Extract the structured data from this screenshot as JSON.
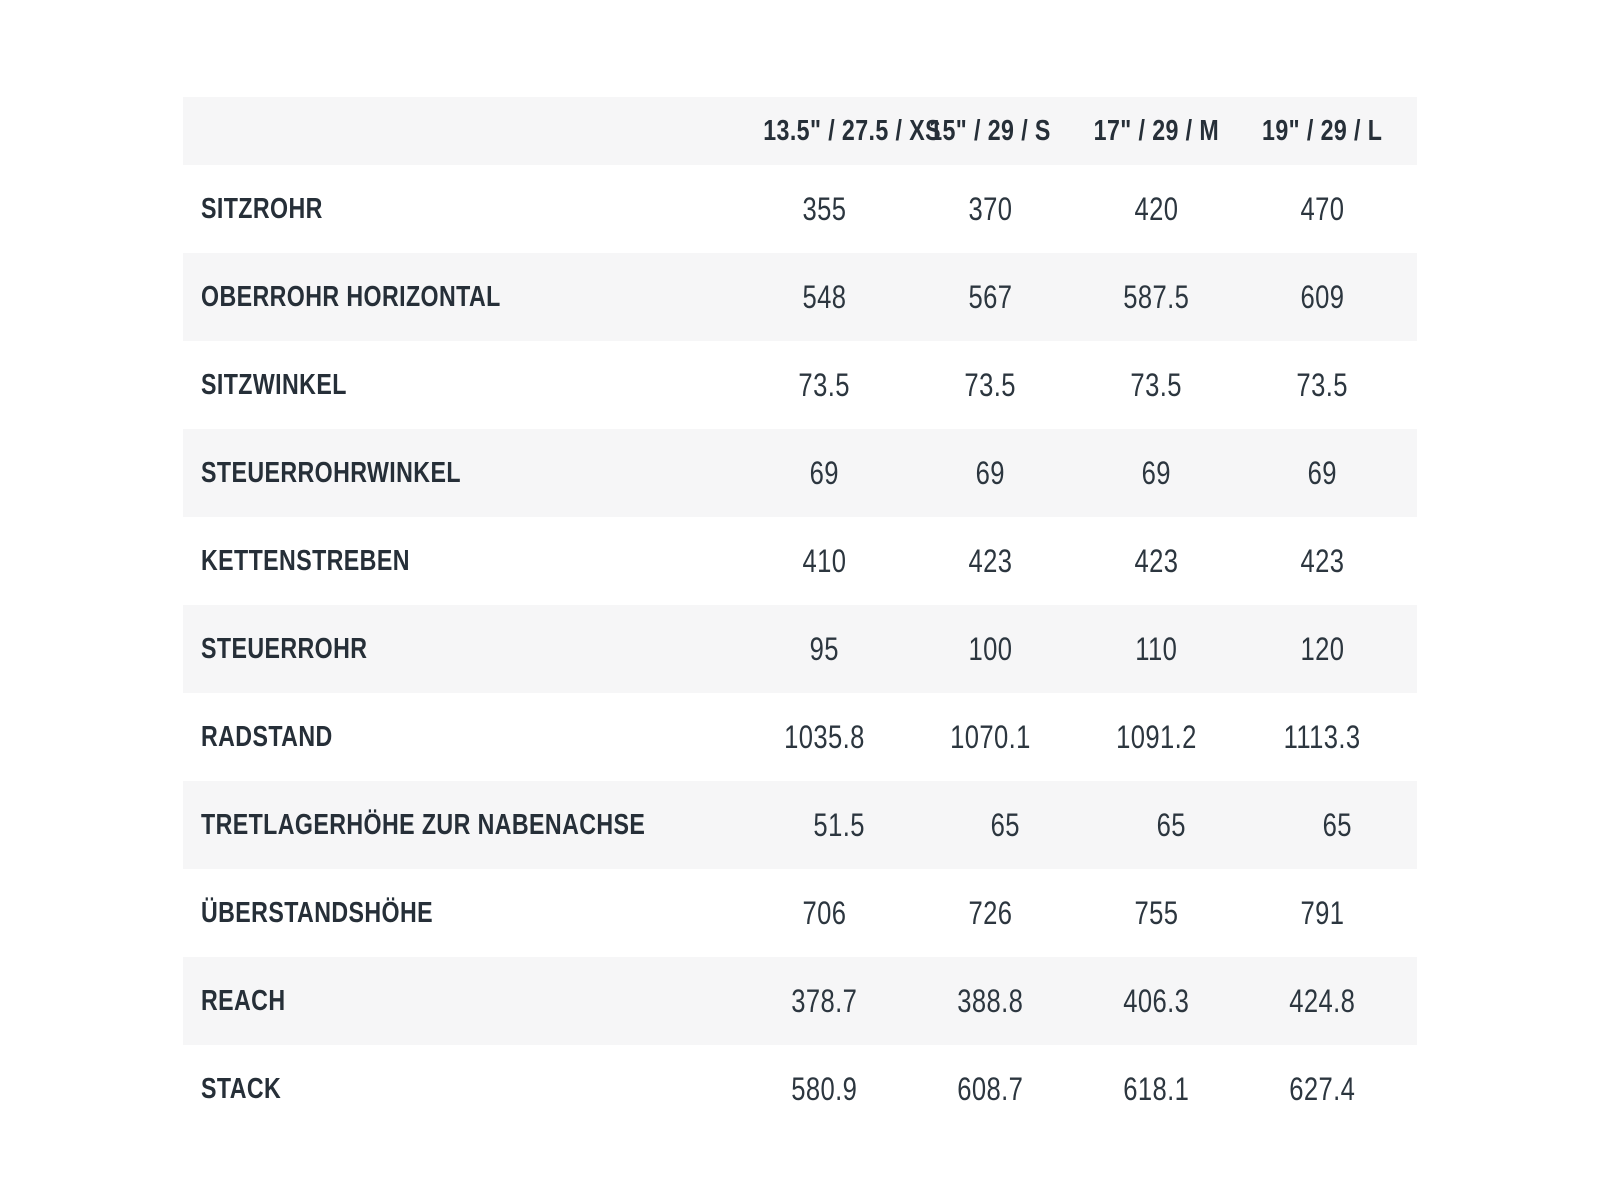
{
  "table": {
    "columns": [
      "13.5\" / 27.5 / XS",
      "15\" / 29 / S",
      "17\" / 29 / M",
      "19\" / 29 / L"
    ],
    "rows": [
      {
        "label": "SITZROHR",
        "values": [
          "355",
          "370",
          "420",
          "470"
        ]
      },
      {
        "label": "OBERROHR HORIZONTAL",
        "values": [
          "548",
          "567",
          "587.5",
          "609"
        ]
      },
      {
        "label": "SITZWINKEL",
        "values": [
          "73.5",
          "73.5",
          "73.5",
          "73.5"
        ]
      },
      {
        "label": "STEUERROHRWINKEL",
        "values": [
          "69",
          "69",
          "69",
          "69"
        ]
      },
      {
        "label": "KETTENSTREBEN",
        "values": [
          "410",
          "423",
          "423",
          "423"
        ]
      },
      {
        "label": "STEUERROHR",
        "values": [
          "95",
          "100",
          "110",
          "120"
        ]
      },
      {
        "label": "RADSTAND",
        "values": [
          "1035.8",
          "1070.1",
          "1091.2",
          "1113.3"
        ]
      },
      {
        "label": "TRETLAGERHÖHE ZUR NABENACHSE",
        "values": [
          "51.5",
          "65",
          "65",
          "65"
        ]
      },
      {
        "label": "ÜBERSTANDSHÖHE",
        "values": [
          "706",
          "726",
          "755",
          "791"
        ]
      },
      {
        "label": "REACH",
        "values": [
          "378.7",
          "388.8",
          "406.3",
          "424.8"
        ]
      },
      {
        "label": "STACK",
        "values": [
          "580.9",
          "608.7",
          "618.1",
          "627.4"
        ]
      }
    ]
  },
  "colors": {
    "row_stripe": "#f6f6f7",
    "background": "#ffffff",
    "text_dark": "#262f38",
    "text_value": "#2c363f"
  }
}
